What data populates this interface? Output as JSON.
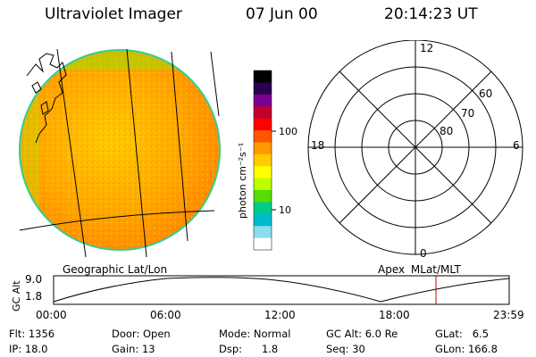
{
  "header": {
    "title": "Ultraviolet Imager",
    "date": "07 Jun 00",
    "time": "20:14:23 UT"
  },
  "colorbar": {
    "unit_label": "photon cm⁻²s⁻¹",
    "tick_labels": [
      "100",
      "10"
    ],
    "colors": [
      "#000000",
      "#2a0050",
      "#7a0090",
      "#c00030",
      "#ff0000",
      "#ff5500",
      "#ff9900",
      "#ffcc00",
      "#ffff00",
      "#bbff00",
      "#55dd00",
      "#00cc88",
      "#00bbcc",
      "#88ddee",
      "#ffffff"
    ]
  },
  "geo_panel": {
    "label": "Geographic Lat/Lon",
    "disk_colors": [
      "#ffd500",
      "#ffb000",
      "#ff8c00"
    ]
  },
  "polar_panel": {
    "label": "Apex MLat/MLT",
    "mlt_labels": {
      "top": "12",
      "left": "18",
      "right": "6",
      "bottom": "0"
    },
    "lat_labels": [
      "60",
      "70",
      "80"
    ]
  },
  "orbit_plot": {
    "axis_title": "GC Alt",
    "y_ticks": [
      "9.0",
      "1.8"
    ],
    "x_ticks": [
      "00:00",
      "06:00",
      "12:00",
      "18:00",
      "23:59"
    ],
    "marker_time": "20:14",
    "marker_color": "#cc0000"
  },
  "status": {
    "flt": "Flt: 1356",
    "door": "Door: Open",
    "mode": "Mode: Normal",
    "gc_alt": "GC Alt: 6.0 Re",
    "glat": "GLat:   6.5",
    "ip": "IP: 18.0",
    "gain": "Gain: 13",
    "dsp": "Dsp:      1.8",
    "seq": "Seq: 30",
    "glon": "GLon: 166.8"
  }
}
